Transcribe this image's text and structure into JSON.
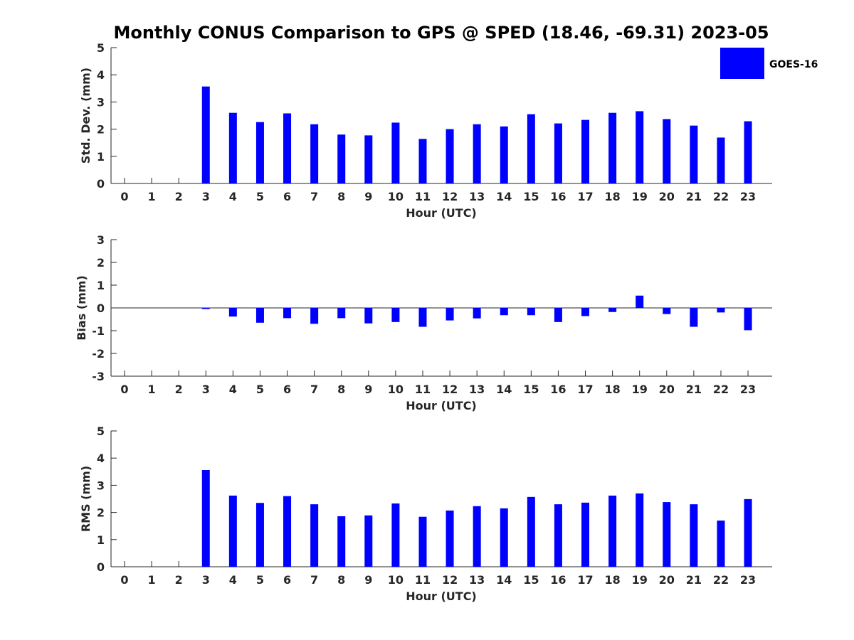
{
  "title": "Monthly CONUS Comparison to GPS @ SPED (18.46, -69.31) 2023-05",
  "legend": {
    "label": "GOES-16",
    "color": "#0000ff"
  },
  "chart_data": [
    {
      "type": "bar",
      "xlabel": "Hour (UTC)",
      "ylabel": "Std. Dev. (mm)",
      "ylim": [
        0,
        5
      ],
      "yticks": [
        0,
        1,
        2,
        3,
        4,
        5
      ],
      "categories": [
        "0",
        "1",
        "2",
        "3",
        "4",
        "5",
        "6",
        "7",
        "8",
        "9",
        "10",
        "11",
        "12",
        "13",
        "14",
        "15",
        "16",
        "17",
        "18",
        "19",
        "20",
        "21",
        "22",
        "23"
      ],
      "series": [
        {
          "name": "GOES-16",
          "values": [
            null,
            null,
            null,
            3.57,
            2.6,
            2.26,
            2.58,
            2.18,
            1.8,
            1.77,
            2.24,
            1.64,
            2.0,
            2.18,
            2.1,
            2.55,
            2.21,
            2.34,
            2.6,
            2.66,
            2.37,
            2.13,
            1.69,
            2.29
          ]
        }
      ]
    },
    {
      "type": "bar",
      "xlabel": "Hour (UTC)",
      "ylabel": "Bias (mm)",
      "ylim": [
        -3,
        3
      ],
      "yticks": [
        -3,
        -2,
        -1,
        0,
        1,
        2,
        3
      ],
      "categories": [
        "0",
        "1",
        "2",
        "3",
        "4",
        "5",
        "6",
        "7",
        "8",
        "9",
        "10",
        "11",
        "12",
        "13",
        "14",
        "15",
        "16",
        "17",
        "18",
        "19",
        "20",
        "21",
        "22",
        "23"
      ],
      "series": [
        {
          "name": "GOES-16",
          "values": [
            null,
            null,
            null,
            -0.05,
            -0.38,
            -0.65,
            -0.45,
            -0.7,
            -0.45,
            -0.68,
            -0.62,
            -0.83,
            -0.55,
            -0.46,
            -0.32,
            -0.32,
            -0.62,
            -0.36,
            -0.18,
            0.54,
            -0.27,
            -0.83,
            -0.2,
            -0.98
          ]
        }
      ]
    },
    {
      "type": "bar",
      "xlabel": "Hour (UTC)",
      "ylabel": "RMS (mm)",
      "ylim": [
        0,
        5
      ],
      "yticks": [
        0,
        1,
        2,
        3,
        4,
        5
      ],
      "categories": [
        "0",
        "1",
        "2",
        "3",
        "4",
        "5",
        "6",
        "7",
        "8",
        "9",
        "10",
        "11",
        "12",
        "13",
        "14",
        "15",
        "16",
        "17",
        "18",
        "19",
        "20",
        "21",
        "22",
        "23"
      ],
      "series": [
        {
          "name": "GOES-16",
          "values": [
            null,
            null,
            null,
            3.56,
            2.62,
            2.35,
            2.6,
            2.3,
            1.86,
            1.89,
            2.33,
            1.84,
            2.07,
            2.23,
            2.15,
            2.57,
            2.3,
            2.36,
            2.62,
            2.7,
            2.38,
            2.3,
            1.7,
            2.49
          ]
        }
      ]
    }
  ]
}
